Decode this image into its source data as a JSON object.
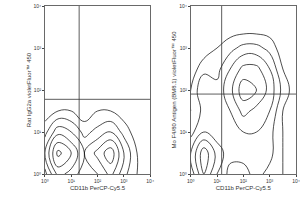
{
  "chart_data": [
    {
      "type": "contour",
      "x_label": "CD11b PerCP-Cy5.5",
      "y_label": "Rat IgG2a violetFluor™ 450",
      "log": true,
      "grid": false,
      "color": "#000000",
      "xlim": [
        1,
        10000
      ],
      "ylim": [
        1,
        10000
      ],
      "xticks": [
        {
          "value": 1,
          "label": "10⁰"
        },
        {
          "value": 10,
          "label": "10¹"
        },
        {
          "value": 100,
          "label": "10²"
        },
        {
          "value": 1000,
          "label": "10³"
        },
        {
          "value": 10000,
          "label": "10⁴"
        }
      ],
      "yticks": [
        {
          "value": 1,
          "label": "10⁰"
        },
        {
          "value": 10,
          "label": "10¹"
        },
        {
          "value": 100,
          "label": "10²"
        },
        {
          "value": 1000,
          "label": "10³"
        },
        {
          "value": 10000,
          "label": "10⁴"
        }
      ],
      "x": [
        1,
        3.16,
        10,
        31.6,
        100,
        316,
        1000,
        3162,
        10000
      ],
      "y": [
        1,
        3.16,
        10,
        31.6,
        100,
        316,
        1000,
        3162,
        10000
      ],
      "z": [
        [
          2,
          6,
          5,
          3,
          4,
          6,
          3,
          1,
          0
        ],
        [
          4,
          9,
          7,
          4,
          6,
          8,
          4,
          1,
          0
        ],
        [
          2,
          5,
          4,
          2,
          3,
          4,
          2,
          0,
          0
        ],
        [
          0,
          1,
          1,
          0,
          1,
          1,
          0,
          0,
          0
        ],
        [
          0,
          0,
          0,
          0,
          0,
          0,
          0,
          0,
          0
        ],
        [
          0,
          0,
          0,
          0,
          0,
          0,
          0,
          0,
          0
        ],
        [
          0,
          0,
          0,
          0,
          0,
          0,
          0,
          0,
          0
        ],
        [
          0,
          0,
          0,
          0,
          0,
          0,
          0,
          0,
          0
        ],
        [
          0,
          0,
          0,
          0,
          0,
          0,
          0,
          0,
          0
        ]
      ],
      "gate_x": 20,
      "gate_y": 60
    },
    {
      "type": "contour",
      "x_label": "CD11b PerCP-Cy5.5",
      "y_label": "Mo F4/80 Antigen (BM8.1) violetFluor™ 450",
      "log": true,
      "grid": false,
      "color": "#000000",
      "xlim": [
        1,
        10000
      ],
      "ylim": [
        1,
        10000
      ],
      "xticks": [
        {
          "value": 1,
          "label": "10⁰"
        },
        {
          "value": 10,
          "label": "10¹"
        },
        {
          "value": 100,
          "label": "10²"
        },
        {
          "value": 1000,
          "label": "10³"
        },
        {
          "value": 10000,
          "label": "10⁴"
        }
      ],
      "yticks": [
        {
          "value": 1,
          "label": "10⁰"
        },
        {
          "value": 10,
          "label": "10¹"
        },
        {
          "value": 100,
          "label": "10²"
        },
        {
          "value": 1000,
          "label": "10³"
        },
        {
          "value": 10000,
          "label": "10⁴"
        }
      ],
      "x": [
        1,
        3.16,
        10,
        31.6,
        100,
        316,
        1000,
        3162,
        10000
      ],
      "y": [
        1,
        3.16,
        10,
        31.6,
        100,
        316,
        1000,
        3162,
        10000
      ],
      "z": [
        [
          3,
          7,
          4,
          2,
          2,
          3,
          2,
          1,
          0
        ],
        [
          4,
          8,
          5,
          3,
          3,
          4,
          3,
          1,
          0
        ],
        [
          2,
          4,
          3,
          3,
          4,
          4,
          3,
          1,
          0
        ],
        [
          1,
          3,
          3,
          4,
          6,
          5,
          4,
          1,
          0
        ],
        [
          1,
          4,
          3,
          5,
          8,
          7,
          5,
          2,
          0
        ],
        [
          0,
          2,
          2,
          4,
          6,
          6,
          4,
          1,
          0
        ],
        [
          0,
          0,
          1,
          2,
          3,
          3,
          2,
          0,
          0
        ],
        [
          0,
          0,
          0,
          0,
          0,
          0,
          0,
          0,
          0
        ],
        [
          0,
          0,
          0,
          0,
          0,
          0,
          0,
          0,
          0
        ]
      ],
      "gate_x": 15,
      "gate_y": 80
    }
  ]
}
